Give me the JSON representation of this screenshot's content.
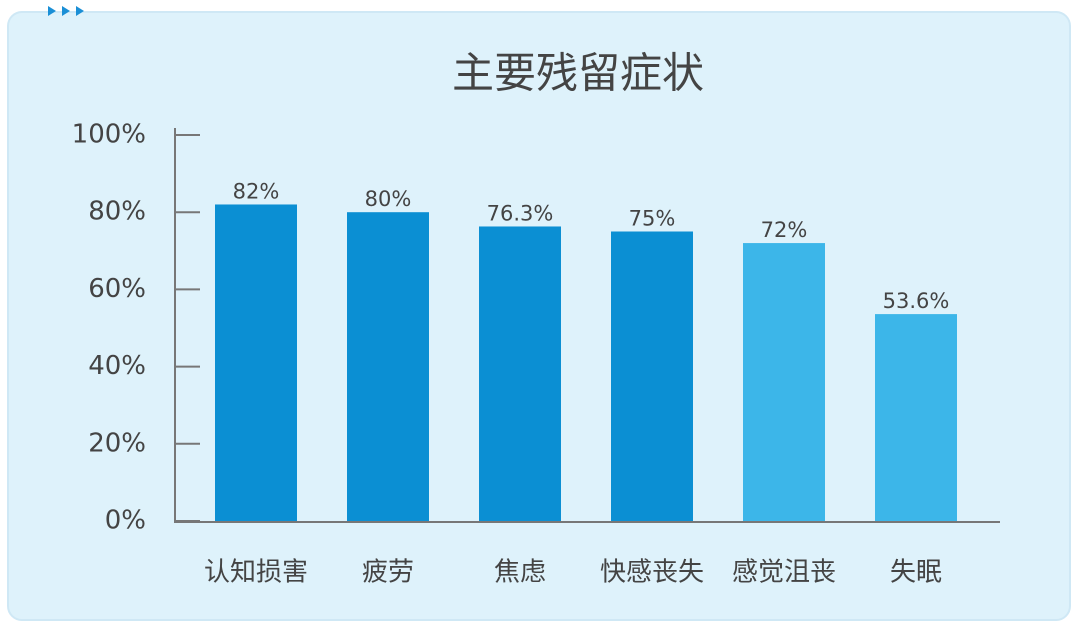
{
  "chart_data": {
    "type": "bar",
    "title": "主要残留症状",
    "categories": [
      "认知损害",
      "疲劳",
      "焦虑",
      "快感丧失",
      "感觉沮丧",
      "失眠"
    ],
    "values": [
      82,
      80,
      76.3,
      75,
      72,
      53.6
    ],
    "value_labels": [
      "82%",
      "80%",
      "76.3%",
      "75%",
      "72%",
      "53.6%"
    ],
    "colors": [
      "#0b8fd3",
      "#0b8fd3",
      "#0b8fd3",
      "#0b8fd3",
      "#3cb6e9",
      "#3cb6e9"
    ],
    "ylim": [
      0,
      100
    ],
    "yticks": [
      {
        "value": 0,
        "label": "0%"
      },
      {
        "value": 20,
        "label": "20%"
      },
      {
        "value": 40,
        "label": "40%"
      },
      {
        "value": 60,
        "label": "60%"
      },
      {
        "value": 80,
        "label": "80%"
      },
      {
        "value": 100,
        "label": "100%"
      }
    ],
    "grid": false
  }
}
